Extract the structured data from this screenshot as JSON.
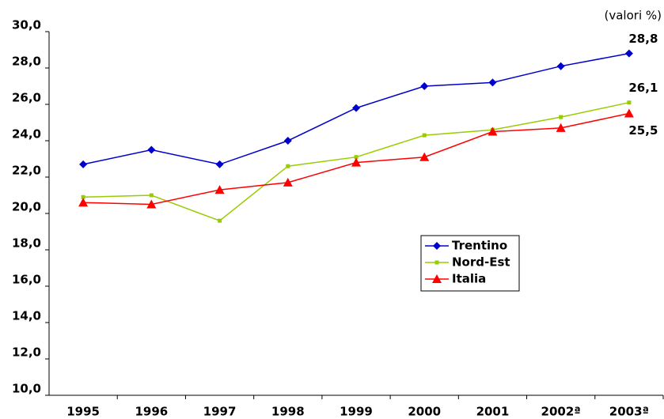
{
  "chart_data": {
    "type": "line",
    "annotation": "(valori %)",
    "categories": [
      "1995",
      "1996",
      "1997",
      "1998",
      "1999",
      "2000",
      "2001",
      "2002ª",
      "2003ª"
    ],
    "series": [
      {
        "name": "Trentino",
        "color": "#0000cc",
        "marker": "diamond",
        "values": [
          22.7,
          23.5,
          22.7,
          24.0,
          25.8,
          27.0,
          27.2,
          28.1,
          28.8
        ],
        "value_labels": [
          null,
          null,
          null,
          null,
          null,
          null,
          null,
          null,
          "28,8"
        ]
      },
      {
        "name": "Nord-Est",
        "color": "#99cc00",
        "marker": "square",
        "values": [
          20.9,
          21.0,
          19.6,
          22.6,
          23.1,
          24.3,
          24.6,
          25.3,
          26.1
        ],
        "value_labels": [
          null,
          null,
          null,
          null,
          null,
          null,
          null,
          null,
          "26,1"
        ]
      },
      {
        "name": "Italia",
        "color": "#ff0000",
        "marker": "triangle",
        "values": [
          20.6,
          20.5,
          21.3,
          21.7,
          22.8,
          23.1,
          24.5,
          24.7,
          25.5
        ],
        "value_labels": [
          null,
          null,
          null,
          null,
          null,
          null,
          null,
          null,
          "25,5"
        ]
      }
    ],
    "ylim": [
      10,
      30
    ],
    "yticks": [
      {
        "value": 10,
        "label": "10,0"
      },
      {
        "value": 12,
        "label": "12,0"
      },
      {
        "value": 14,
        "label": "14,0"
      },
      {
        "value": 16,
        "label": "16,0"
      },
      {
        "value": 18,
        "label": "18,0"
      },
      {
        "value": 20,
        "label": "20,0"
      },
      {
        "value": 22,
        "label": "22,0"
      },
      {
        "value": 24,
        "label": "24,0"
      },
      {
        "value": 26,
        "label": "26,0"
      },
      {
        "value": 28,
        "label": "28,0"
      },
      {
        "value": 30,
        "label": "30,0"
      }
    ],
    "grid": false
  }
}
